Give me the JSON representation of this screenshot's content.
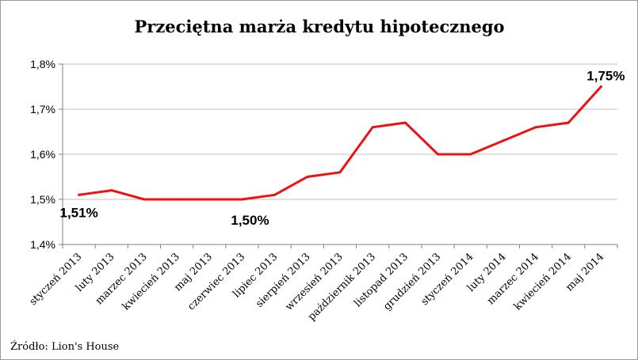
{
  "chart_data": {
    "type": "line",
    "title": "Przeciętna marża kredytu hipotecznego",
    "xlabel": "",
    "ylabel": "",
    "categories": [
      "styczeń 2013",
      "luty 2013",
      "marzec 2013",
      "kwiecień 2013",
      "maj 2013",
      "czerwiec 2013",
      "lipiec 2013",
      "sierpień 2013",
      "wrzesień 2013",
      "październik 2013",
      "listopad 2013",
      "grudzień 2013",
      "styczeń 2014",
      "luty 2014",
      "marzec 2014",
      "kwiecień 2014",
      "maj 2014"
    ],
    "series": [
      {
        "values": [
          1.51,
          1.52,
          1.5,
          1.5,
          1.5,
          1.5,
          1.51,
          1.55,
          1.56,
          1.66,
          1.67,
          1.6,
          1.6,
          1.63,
          1.66,
          1.67,
          1.75
        ],
        "color": "#ee1111"
      }
    ],
    "ylim": [
      1.4,
      1.8
    ],
    "yticks": [
      1.4,
      1.5,
      1.6,
      1.7,
      1.8
    ],
    "ytick_labels": [
      "1,4%",
      "1,5%",
      "1,6%",
      "1,7%",
      "1,8%"
    ],
    "grid": true,
    "data_labels": [
      {
        "index": 0,
        "text": "1,51%"
      },
      {
        "index": 5,
        "text": "1,50%"
      },
      {
        "index": 16,
        "text": "1,75%"
      }
    ]
  },
  "footer": {
    "source": "Źródło: Lion's House"
  }
}
